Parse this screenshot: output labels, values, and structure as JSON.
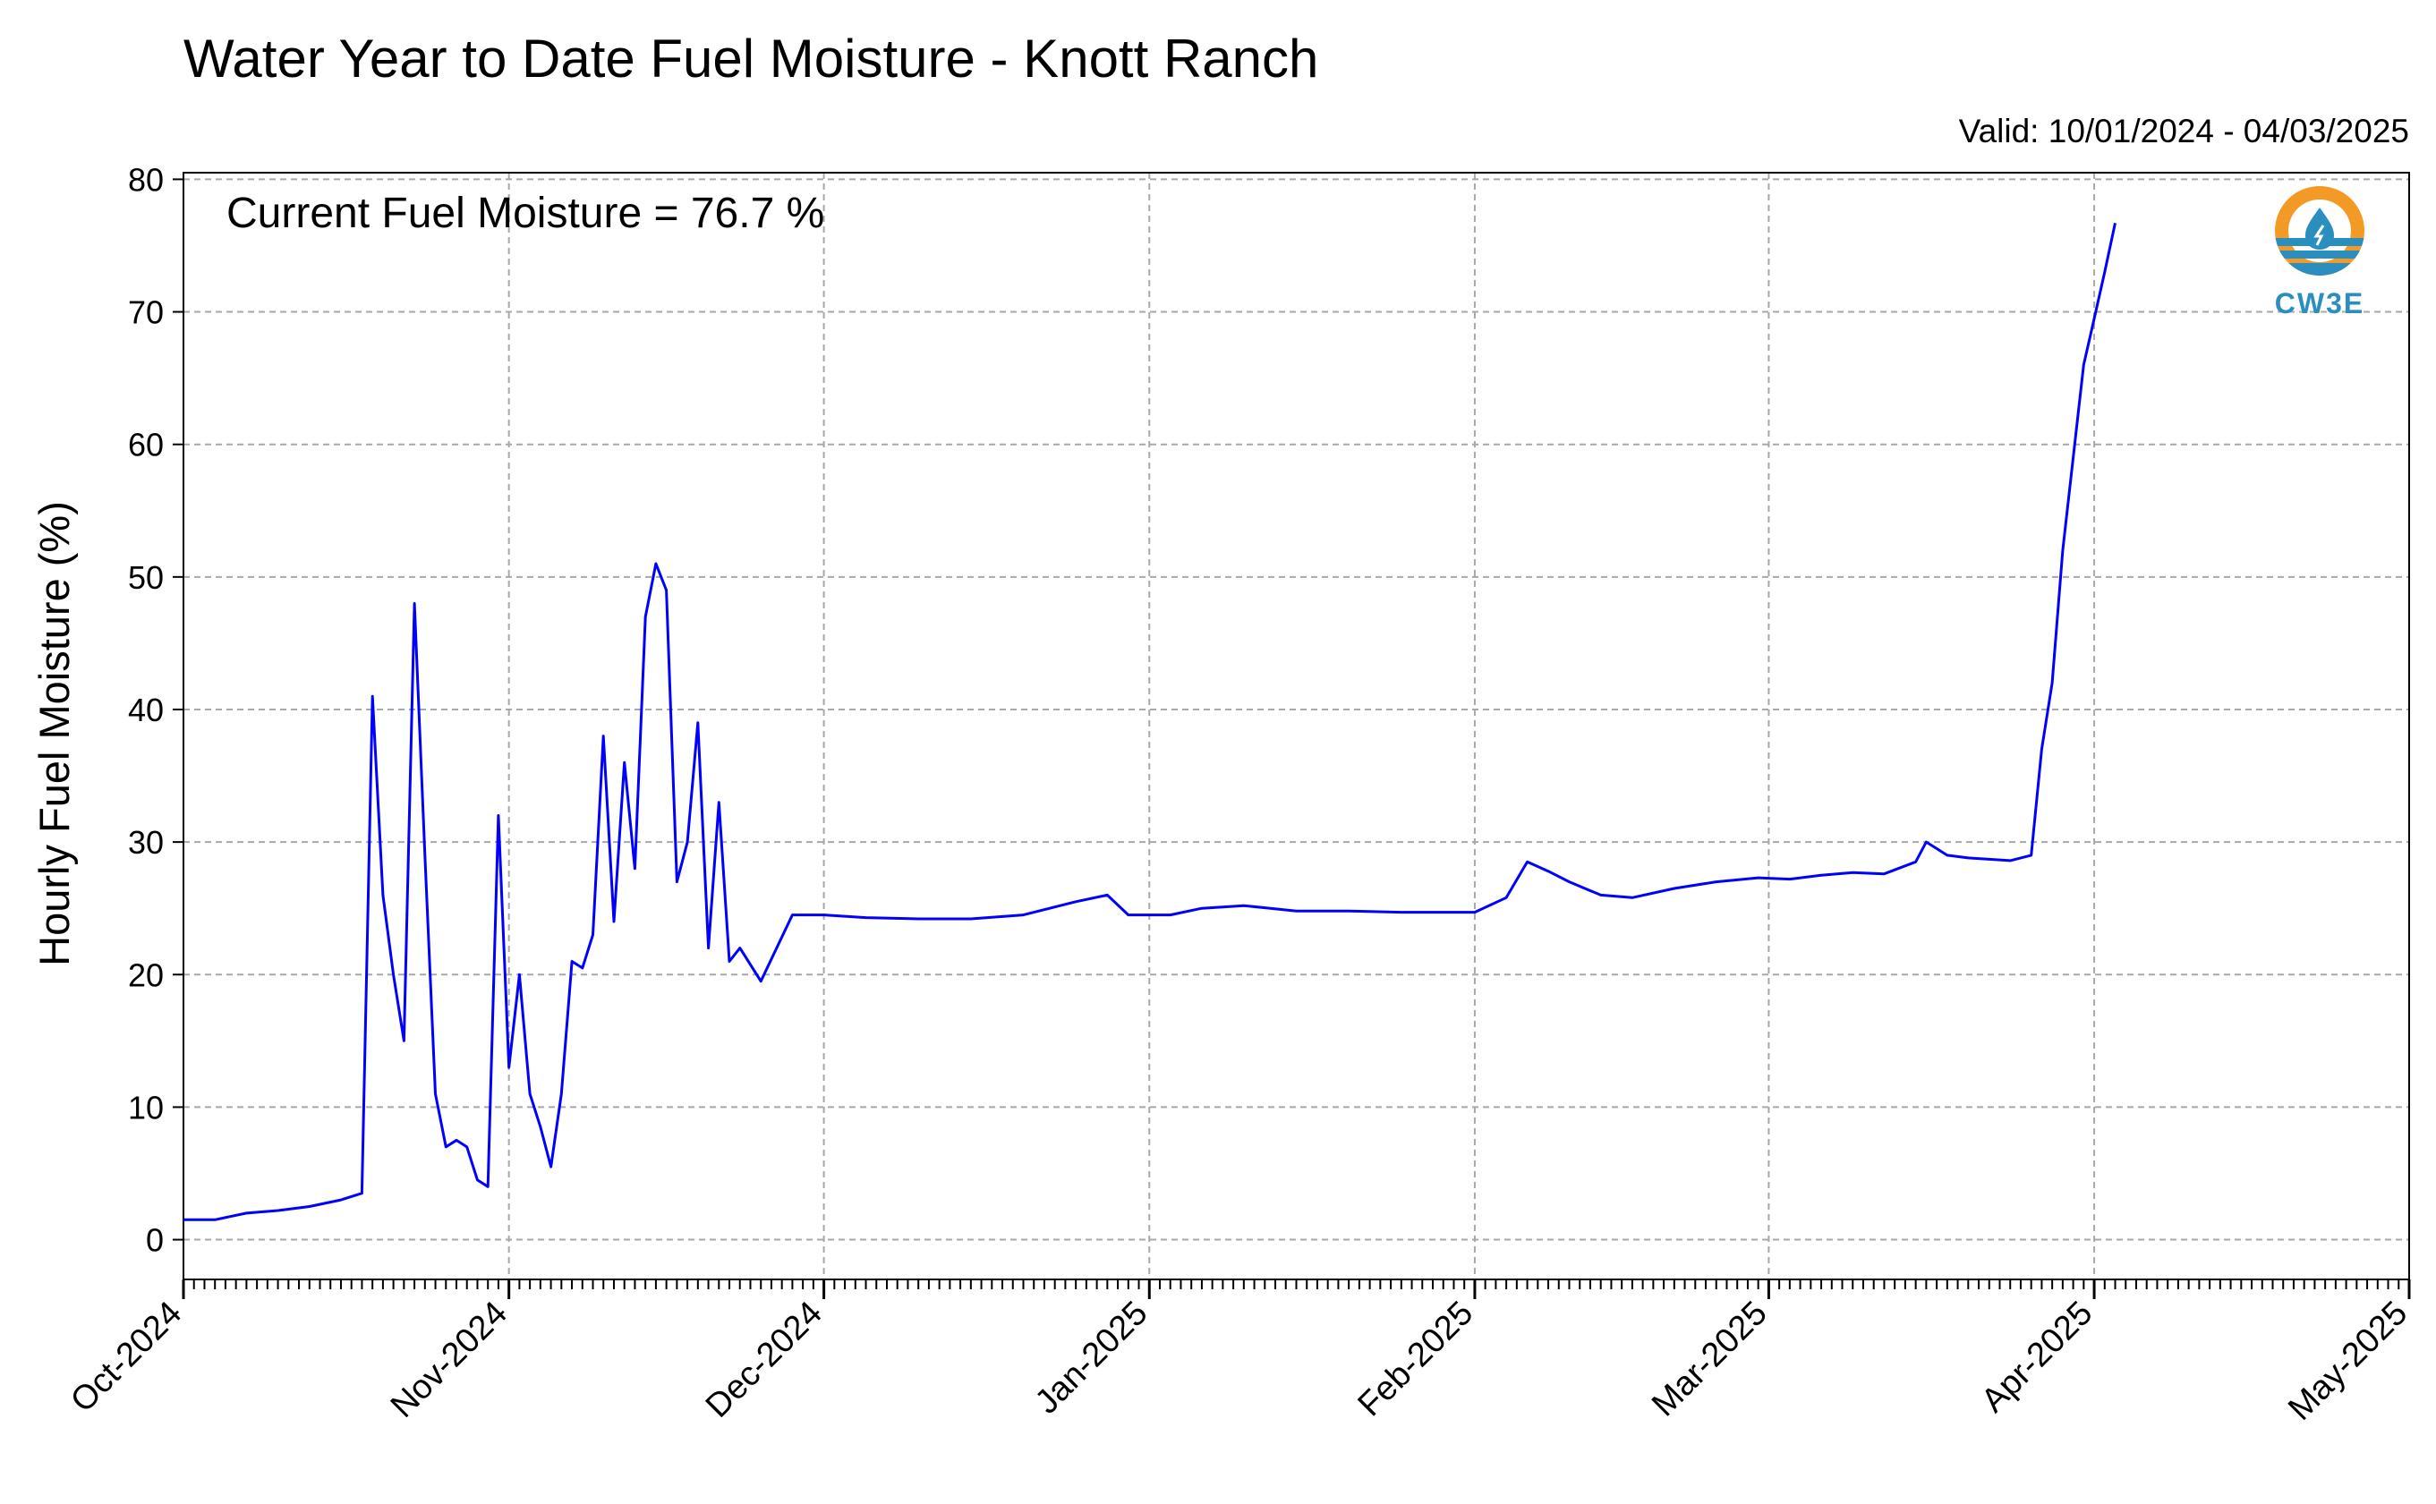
{
  "chart_data": {
    "type": "line",
    "title": "Water Year to Date Fuel Moisture - Knott Ranch",
    "subtitle": "Valid: 10/01/2024 - 04/03/2025",
    "annotation": "Current Fuel Moisture = 76.7 %",
    "xlabel": "",
    "ylabel": "Hourly Fuel Moisture (%)",
    "xlim": [
      "2024-10-01",
      "2025-05-01"
    ],
    "ylim": [
      -3,
      80.5
    ],
    "x_ticks": [
      {
        "date": "2024-10-01",
        "label": "Oct-2024"
      },
      {
        "date": "2024-11-01",
        "label": "Nov-2024"
      },
      {
        "date": "2024-12-01",
        "label": "Dec-2024"
      },
      {
        "date": "2025-01-01",
        "label": "Jan-2025"
      },
      {
        "date": "2025-02-01",
        "label": "Feb-2025"
      },
      {
        "date": "2025-03-01",
        "label": "Mar-2025"
      },
      {
        "date": "2025-04-01",
        "label": "Apr-2025"
      },
      {
        "date": "2025-05-01",
        "label": "May-2025"
      }
    ],
    "y_ticks": [
      0,
      10,
      20,
      30,
      40,
      50,
      60,
      70,
      80
    ],
    "grid": true,
    "line_color": "#0000ff",
    "x": [
      "2024-10-01",
      "2024-10-04",
      "2024-10-07",
      "2024-10-10",
      "2024-10-13",
      "2024-10-16",
      "2024-10-18",
      "2024-10-19",
      "2024-10-20",
      "2024-10-21",
      "2024-10-22",
      "2024-10-23",
      "2024-10-24",
      "2024-10-25",
      "2024-10-26",
      "2024-10-27",
      "2024-10-28",
      "2024-10-29",
      "2024-10-30",
      "2024-10-31",
      "2024-11-01",
      "2024-11-02",
      "2024-11-03",
      "2024-11-04",
      "2024-11-05",
      "2024-11-06",
      "2024-11-07",
      "2024-11-08",
      "2024-11-09",
      "2024-11-10",
      "2024-11-11",
      "2024-11-12",
      "2024-11-13",
      "2024-11-14",
      "2024-11-15",
      "2024-11-16",
      "2024-11-17",
      "2024-11-18",
      "2024-11-19",
      "2024-11-20",
      "2024-11-21",
      "2024-11-22",
      "2024-11-23",
      "2024-11-25",
      "2024-11-28",
      "2024-12-01",
      "2024-12-05",
      "2024-12-10",
      "2024-12-15",
      "2024-12-20",
      "2024-12-25",
      "2024-12-28",
      "2024-12-30",
      "2025-01-01",
      "2025-01-03",
      "2025-01-06",
      "2025-01-10",
      "2025-01-15",
      "2025-01-20",
      "2025-01-25",
      "2025-02-01",
      "2025-02-04",
      "2025-02-06",
      "2025-02-08",
      "2025-02-10",
      "2025-02-13",
      "2025-02-16",
      "2025-02-20",
      "2025-02-24",
      "2025-02-28",
      "2025-03-03",
      "2025-03-06",
      "2025-03-09",
      "2025-03-12",
      "2025-03-15",
      "2025-03-16",
      "2025-03-18",
      "2025-03-20",
      "2025-03-24",
      "2025-03-26",
      "2025-03-27",
      "2025-03-28",
      "2025-03-29",
      "2025-03-30",
      "2025-03-31",
      "2025-04-01",
      "2025-04-02",
      "2025-04-03"
    ],
    "y": [
      1.5,
      1.5,
      2.0,
      2.2,
      2.5,
      3.0,
      3.5,
      41.0,
      26.0,
      20.0,
      15.0,
      48.0,
      29.0,
      11.0,
      7.0,
      7.5,
      7.0,
      4.5,
      4.0,
      32.0,
      13.0,
      20.0,
      11.0,
      8.5,
      5.5,
      11.0,
      21.0,
      20.5,
      23.0,
      38.0,
      24.0,
      36.0,
      28.0,
      47.0,
      51.0,
      49.0,
      27.0,
      30.0,
      39.0,
      22.0,
      33.0,
      21.0,
      22.0,
      19.5,
      24.5,
      24.5,
      24.3,
      24.2,
      24.2,
      24.5,
      25.5,
      26.0,
      24.5,
      24.5,
      24.5,
      25.0,
      25.2,
      24.8,
      24.8,
      24.7,
      24.7,
      25.8,
      28.5,
      27.8,
      27.0,
      26.0,
      25.8,
      26.5,
      27.0,
      27.3,
      27.2,
      27.5,
      27.7,
      27.6,
      28.5,
      30.0,
      29.0,
      28.8,
      28.6,
      29.0,
      37.0,
      42.0,
      52.0,
      59.0,
      66.0,
      69.5,
      73.0,
      76.7
    ]
  }
}
